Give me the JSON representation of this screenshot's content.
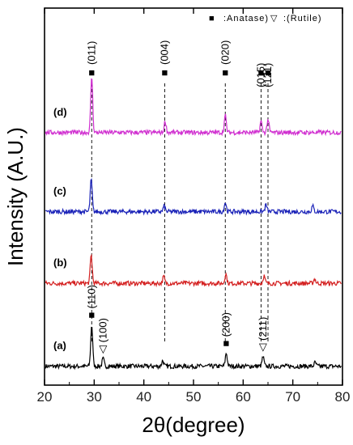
{
  "chart_data": {
    "type": "line",
    "xlabel": "2θ(degree)",
    "ylabel": "Intensity (A.U.)",
    "xlim": [
      20,
      80
    ],
    "x_ticks": [
      "20",
      "30",
      "40",
      "50",
      "60",
      "70",
      "80"
    ],
    "legend": {
      "anatase_marker": "■",
      "anatase_text": ":Anatase)",
      "rutile_marker": "▽",
      "rutile_text": ":(Rutile)",
      "placement": "top-right"
    },
    "series": [
      {
        "name": "(a)",
        "color": "#000000",
        "baseline": 0.05,
        "peaks": [
          [
            29.5,
            0.11
          ],
          [
            31.8,
            0.02
          ],
          [
            43.8,
            0.015
          ],
          [
            56.6,
            0.035
          ],
          [
            64.0,
            0.025
          ],
          [
            74.5,
            0.01
          ]
        ]
      },
      {
        "name": "(b)",
        "color": "#d42020",
        "baseline": 0.27,
        "peaks": [
          [
            29.4,
            0.075
          ],
          [
            44.0,
            0.018
          ],
          [
            56.5,
            0.025
          ],
          [
            64.2,
            0.02
          ],
          [
            74.4,
            0.012
          ]
        ]
      },
      {
        "name": "(c)",
        "color": "#1a22b8",
        "baseline": 0.46,
        "peaks": [
          [
            29.4,
            0.085
          ],
          [
            44.1,
            0.015
          ],
          [
            56.4,
            0.025
          ],
          [
            64.6,
            0.018
          ],
          [
            74.0,
            0.015
          ]
        ]
      },
      {
        "name": "(d)",
        "color": "#d02fd0",
        "baseline": 0.67,
        "peaks": [
          [
            29.5,
            0.15
          ],
          [
            44.3,
            0.03
          ],
          [
            56.4,
            0.045
          ],
          [
            63.6,
            0.03
          ],
          [
            65.0,
            0.035
          ]
        ]
      }
    ],
    "reference_lines": [
      {
        "x": 29.5,
        "label": "(011)",
        "marker": "■"
      },
      {
        "x": 44.2,
        "label": "(004)",
        "marker": "■"
      },
      {
        "x": 56.4,
        "label": "(020)",
        "marker": "■"
      },
      {
        "x": 63.6,
        "label": "(015)",
        "marker": "■"
      },
      {
        "x": 65.0,
        "label": "(121)",
        "marker": "■"
      }
    ],
    "bottom_annotations": [
      {
        "x": 29.5,
        "label": "(110)",
        "marker": "■"
      },
      {
        "x": 31.8,
        "label": "(100)",
        "marker": "▽"
      },
      {
        "x": 56.6,
        "label": "(200)",
        "marker": "■"
      },
      {
        "x": 64.0,
        "label": "(211)",
        "marker": "▽"
      }
    ]
  }
}
